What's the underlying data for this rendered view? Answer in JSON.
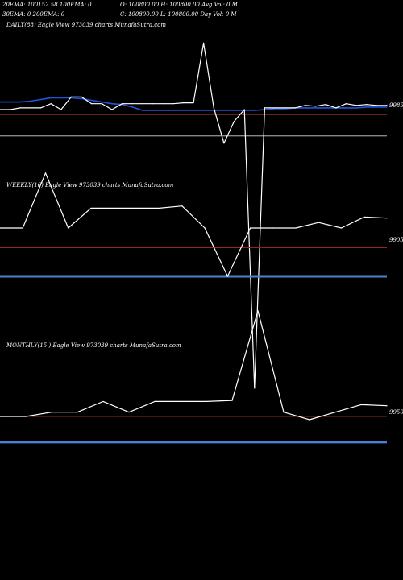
{
  "header": {
    "line1a": "20EMA: 100152.58 100EMA: 0",
    "line1b": "O: 100800.00 H: 100800.00 Avg Vol: 0  M",
    "line2a": "30EMA: 0        200EMA: 0",
    "line2b": "C: 100800.00 L: 100800.00 Day Vol: 0  M"
  },
  "colors": {
    "background": "#000000",
    "price_line": "#ffffff",
    "ema_line": "#2255dd",
    "ref_line_red": "#8b2a1a",
    "ref_line_blue": "#4a7fd4",
    "ref_line_grey": "#888888"
  },
  "chart_data": [
    {
      "type": "line",
      "title": "DAILY(88) Eagle  View  973039 charts MunafaSutra.com",
      "price_label": "9985",
      "series": [
        {
          "values": [
            99770,
            99770,
            99790,
            99790,
            99790,
            99840,
            99770,
            99920,
            99920,
            99840,
            99840,
            99770,
            99840,
            99840,
            99840,
            99840,
            99840,
            99840,
            99850,
            99850,
            100560,
            99790,
            99370,
            99630,
            99770,
            96460,
            99790,
            99790,
            99790,
            99790,
            99820,
            99810,
            99830,
            99790,
            99840,
            99820,
            99830,
            99820,
            99820
          ]
        },
        {
          "values": [
            99860,
            99860,
            99860,
            99870,
            99890,
            99910,
            99910,
            99910,
            99900,
            99880,
            99860,
            99840,
            99830,
            99800,
            99760,
            99760,
            99760,
            99760,
            99760,
            99760,
            99760,
            99760,
            99760,
            99760,
            99760,
            99760,
            99770,
            99780,
            99780,
            99790,
            99790,
            99790,
            99790,
            99790,
            99790,
            99790,
            99800,
            99800,
            99800
          ]
        }
      ],
      "ref_lines": [
        99710,
        99460
      ]
    },
    {
      "type": "line",
      "title": "WEEKLY(16) Eagle   View  973039 charts MunafaSutra.com",
      "price_label": "9905",
      "series": [
        {
          "values": [
            99310,
            99310,
            99810,
            99310,
            99490,
            99490,
            99490,
            99490,
            99510,
            99310,
            98870,
            99310,
            99310,
            99310,
            99360,
            99310,
            99410,
            99400
          ]
        }
      ],
      "ref_lines": [
        99130,
        98870
      ]
    },
    {
      "type": "line",
      "title": "MONTHLY(15             ) Eagle   View  973039 charts MunafaSutra.com",
      "price_label": "9950",
      "series": [
        {
          "values": [
            99420,
            99420,
            99460,
            99460,
            99560,
            99460,
            99560,
            99560,
            99560,
            99570,
            100410,
            99460,
            99390,
            99460,
            99530,
            99520
          ]
        }
      ],
      "ref_lines": [
        99420,
        99180
      ]
    }
  ]
}
